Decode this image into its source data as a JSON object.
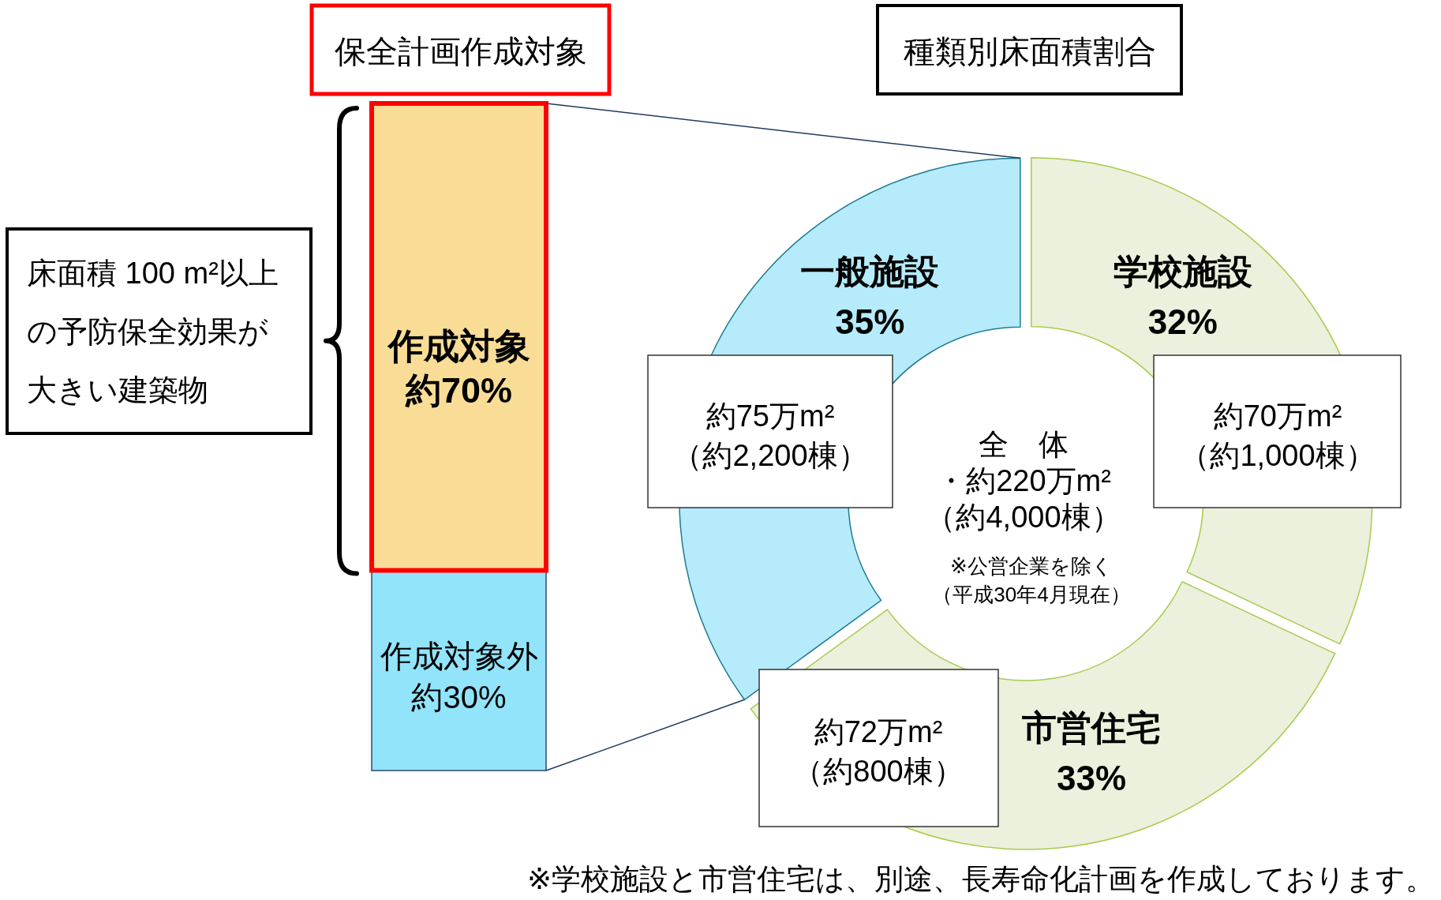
{
  "chart_data": [
    {
      "type": "bar",
      "stacked": true,
      "title": "保全計画作成対象",
      "categories": [
        null
      ],
      "series": [
        {
          "name": "作成対象外",
          "color": "#92e4fa",
          "values": [
            30
          ],
          "value_labels": [
            "約30%"
          ]
        },
        {
          "name": "作成対象",
          "color": "#f9dd96",
          "values": [
            70
          ],
          "value_labels": [
            "約70%"
          ]
        }
      ],
      "annotations": [
        "床面積 100 m²以上の予防保全効果が大きい建築物"
      ]
    },
    {
      "type": "donut",
      "title": "種類別床面積割合",
      "categories": [
        "学校施設",
        "市営住宅",
        "一般施設"
      ],
      "values": [
        32,
        33,
        35
      ],
      "colors": [
        "#ebf1dc",
        "#ebf1dc",
        "#b5ebfa"
      ],
      "value_labels": [
        "32%",
        "33%",
        "35%"
      ],
      "annotations": [
        "約75万m²（約2,200棟）",
        "約70万m²（約1,000棟）",
        "全　体・約220万m²（約4,000棟）",
        "※公営企業を除く（平成30年4月現在）",
        "約72万m²（約800棟）",
        "※学校施設と市営住宅は、別途、長寿命化計画を作成しております。"
      ]
    }
  ]
}
